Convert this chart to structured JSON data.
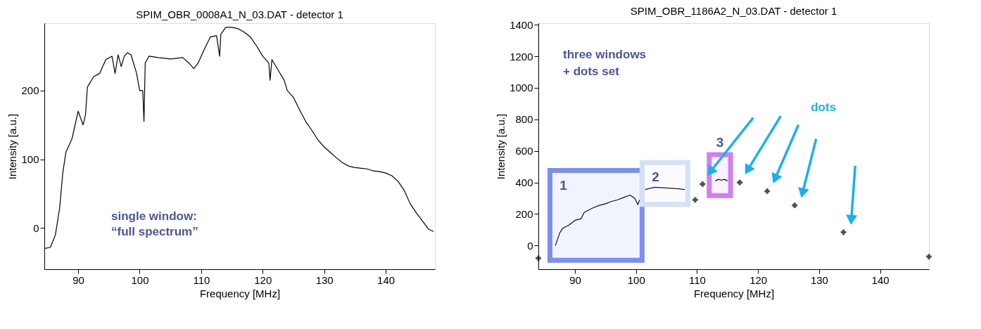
{
  "chart_data": [
    {
      "type": "line",
      "title": "SPIM_OBR_0008A1_N_03.DAT - detector 1",
      "xlabel": "Frequency [MHz]",
      "ylabel": "Intensity [a.u.]",
      "xlim": [
        84.5,
        148
      ],
      "ylim": [
        -60,
        298
      ],
      "xticks": [
        90,
        100,
        110,
        120,
        130,
        140
      ],
      "yticks": [
        0,
        100,
        200
      ],
      "grid": false,
      "annotations": [
        "single window:",
        "“full spectrum”"
      ],
      "series": [
        {
          "color": "#000000",
          "x": [
            84.5,
            85.5,
            86.3,
            87,
            87.5,
            88,
            89,
            90,
            90.8,
            91.2,
            91.5,
            92.5,
            93.5,
            94.5,
            95.5,
            96,
            96.5,
            97,
            97.5,
            98,
            98.6,
            99.5,
            100,
            100.5,
            100.7,
            100.9,
            101.5,
            103,
            105,
            107,
            108,
            108.8,
            109.5,
            110.5,
            111.5,
            112.5,
            113,
            113.2,
            114,
            115,
            116,
            117,
            118,
            119,
            120,
            121,
            121.2,
            121.5,
            122.5,
            123.5,
            124,
            125,
            126,
            127,
            128,
            129,
            130,
            131,
            132,
            133,
            134,
            135,
            136,
            137,
            138,
            139,
            140,
            141,
            142,
            143,
            144,
            145,
            146,
            147,
            147.8
          ],
          "values": [
            -30,
            -28,
            -10,
            30,
            80,
            110,
            130,
            170,
            150,
            165,
            205,
            220,
            225,
            245,
            250,
            225,
            252,
            235,
            250,
            255,
            252,
            225,
            200,
            200,
            155,
            240,
            250,
            248,
            246,
            248,
            240,
            232,
            240,
            260,
            278,
            280,
            250,
            282,
            292,
            292,
            290,
            285,
            278,
            265,
            250,
            240,
            215,
            245,
            230,
            215,
            200,
            190,
            172,
            155,
            142,
            128,
            118,
            110,
            102,
            95,
            90,
            88,
            87,
            86,
            83,
            82,
            80,
            76,
            68,
            55,
            35,
            22,
            10,
            -2,
            -5
          ]
        }
      ]
    },
    {
      "type": "line",
      "title": "SPIM_OBR_1186A2_N_03.DAT - detector 1",
      "xlabel": "Frequency [MHz]",
      "ylabel": "Intensity [a.u.]",
      "xlim": [
        84,
        148
      ],
      "ylim": [
        -150,
        1410
      ],
      "xticks": [
        90,
        100,
        110,
        120,
        130,
        140
      ],
      "yticks": [
        0,
        200,
        400,
        600,
        800,
        1000,
        1200,
        1400
      ],
      "grid": false,
      "annotations": [
        "three windows",
        "+ dots set",
        "dots"
      ],
      "bands": [
        {
          "axis": "x",
          "from": 85.9,
          "to": 101,
          "label": "1",
          "color": "#7b8ff0"
        },
        {
          "axis": "x",
          "from": 101,
          "to": 108.5,
          "label": "2",
          "color": "#d6e0fb"
        },
        {
          "axis": "x",
          "from": 112,
          "to": 115.5,
          "label": "3",
          "color": "#d07ff0"
        }
      ],
      "series": [
        {
          "color": "#000000",
          "x": [
            86.8,
            87.5,
            88,
            89,
            90,
            91,
            91.5,
            93,
            94,
            95,
            96,
            97,
            98,
            99,
            99.8,
            100.3,
            100.6
          ],
          "values": [
            0,
            80,
            110,
            130,
            160,
            170,
            210,
            240,
            255,
            265,
            280,
            290,
            305,
            320,
            300,
            260,
            290
          ]
        },
        {
          "color": "#000000",
          "x": [
            101.5,
            103,
            105,
            107,
            108
          ],
          "values": [
            355,
            370,
            365,
            360,
            355
          ]
        },
        {
          "color": "#000000",
          "x": [
            113,
            113.5,
            114,
            114.5,
            115
          ],
          "values": [
            410,
            420,
            415,
            420,
            410
          ]
        },
        {
          "type": "scatter",
          "marker": "cross",
          "color": "#000000",
          "x": [
            84,
            109.7,
            110.9,
            117,
            121.5,
            126,
            134,
            148
          ],
          "values": [
            -80,
            290,
            390,
            400,
            345,
            255,
            85,
            -70
          ]
        }
      ]
    }
  ]
}
